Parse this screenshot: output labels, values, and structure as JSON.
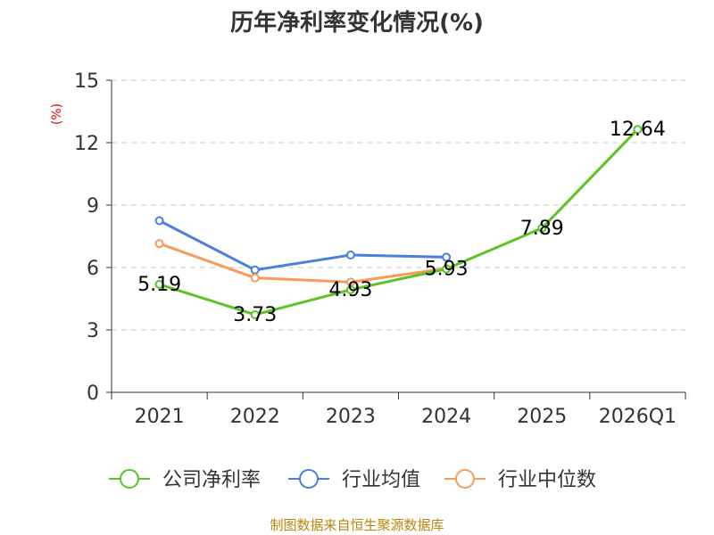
{
  "chart_data": {
    "type": "line",
    "title": "历年净利率变化情况(%)",
    "ylabel": "(%)",
    "xlabel": "",
    "categories": [
      "2021",
      "2022",
      "2023",
      "2024",
      "2025",
      "2026Q1"
    ],
    "ylim": [
      0,
      15
    ],
    "yticks": [
      0,
      3,
      6,
      9,
      12,
      15
    ],
    "grid": true,
    "legend_position": "bottom",
    "series": [
      {
        "name": "公司净利率",
        "color": "#5bc424",
        "values": [
          5.19,
          3.73,
          4.93,
          5.93,
          7.89,
          12.64
        ],
        "labels": [
          "5.19",
          "3.73",
          "4.93",
          "5.93",
          "7.89",
          "12.64"
        ]
      },
      {
        "name": "行业均值",
        "color": "#4a7fdc",
        "values": [
          8.25,
          5.88,
          6.6,
          6.5,
          null,
          null
        ]
      },
      {
        "name": "行业中位数",
        "color": "#f89a5c",
        "values": [
          7.15,
          5.5,
          5.3,
          5.95,
          null,
          null
        ]
      }
    ]
  },
  "source": "制图数据来自恒生聚源数据库"
}
